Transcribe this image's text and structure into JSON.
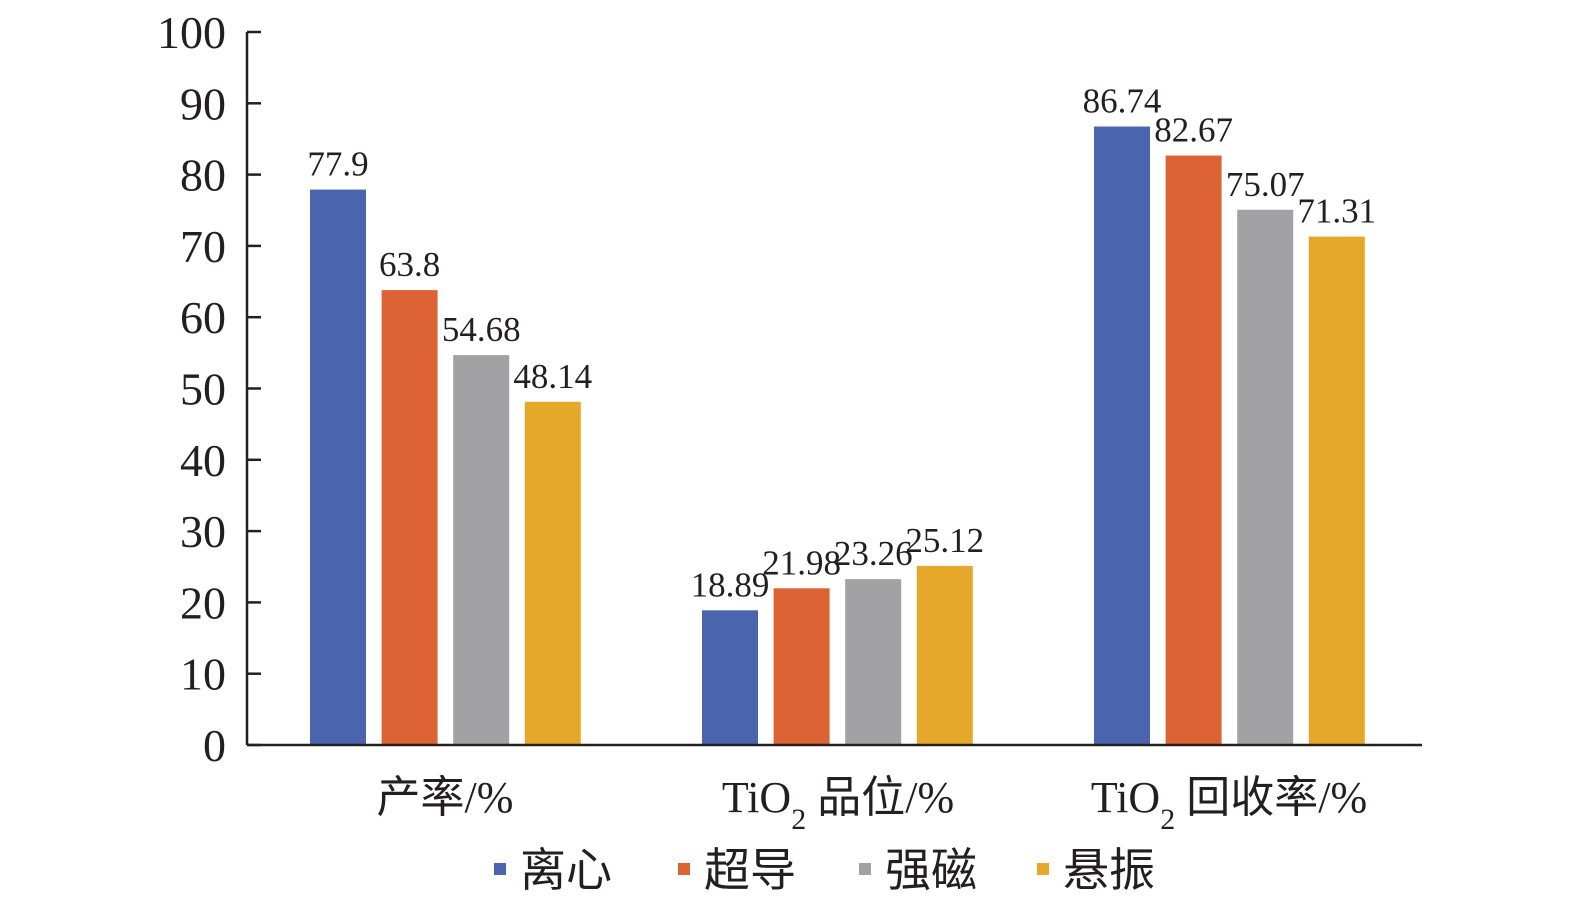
{
  "chart_data": {
    "type": "bar",
    "categories": [
      "产率/%",
      "TiO2 品位/%",
      "TiO2 回收率/%"
    ],
    "category_parts": [
      {
        "prefix": "",
        "sub": "",
        "suffix": "产率/%"
      },
      {
        "prefix": "TiO",
        "sub": "2",
        "suffix": " 品位/%"
      },
      {
        "prefix": "TiO",
        "sub": "2",
        "suffix": " 回收率/%"
      }
    ],
    "series": [
      {
        "name": "离心",
        "color": "#4a65ae",
        "values": [
          77.9,
          18.89,
          86.74
        ],
        "labels": [
          "77.9",
          "18.89",
          "86.74"
        ]
      },
      {
        "name": "超导",
        "color": "#dc6434",
        "values": [
          63.8,
          21.98,
          82.67
        ],
        "labels": [
          "63.8",
          "21.98",
          "82.67"
        ]
      },
      {
        "name": "强磁",
        "color": "#a2a2a4",
        "values": [
          54.68,
          23.26,
          75.07
        ],
        "labels": [
          "54.68",
          "23.26",
          "75.07"
        ]
      },
      {
        "name": "悬振",
        "color": "#e5a82a",
        "values": [
          48.14,
          25.12,
          71.31
        ],
        "labels": [
          "48.14",
          "25.12",
          "71.31"
        ]
      }
    ],
    "ylim": [
      0,
      100
    ],
    "yticks": [
      "0",
      "10",
      "20",
      "30",
      "40",
      "50",
      "60",
      "70",
      "80",
      "90",
      "100"
    ],
    "legend_position": "bottom",
    "grid": false
  }
}
